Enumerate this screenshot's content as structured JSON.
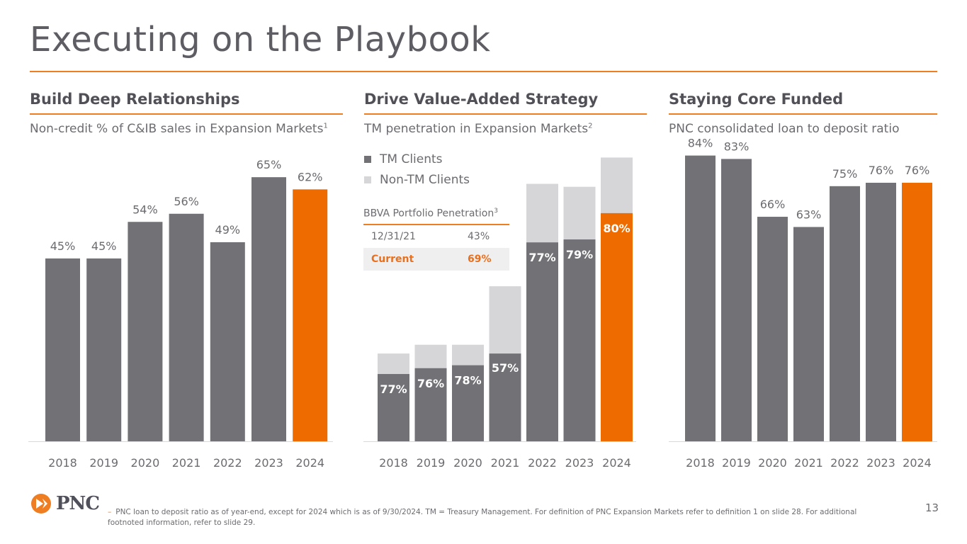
{
  "page": {
    "title": "Executing on the Playbook",
    "page_number": "13"
  },
  "panels": [
    {
      "heading": "Build Deep Relationships",
      "subtitle": "Non-credit % of C&IB sales in Expansion Markets",
      "sup": "1"
    },
    {
      "heading": "Drive Value-Added Strategy",
      "subtitle": "TM penetration in Expansion Markets",
      "sup": "2"
    },
    {
      "heading": "Staying Core Funded",
      "subtitle": "PNC consolidated loan to deposit ratio",
      "sup": ""
    }
  ],
  "legend": {
    "tm": "TM Clients",
    "non_tm": "Non-TM Clients"
  },
  "bbva": {
    "title": "BBVA Portfolio Penetration",
    "sup": "3",
    "rows": [
      {
        "label": "12/31/21",
        "value": "43%"
      },
      {
        "label": "Current",
        "value": "69%"
      }
    ]
  },
  "footer": {
    "logo": "PNC",
    "dash": "–",
    "footnote": "PNC loan to deposit ratio as of year-end, except for 2024 which is as of 9/30/2024. TM = Treasury Management. For definition of PNC Expansion Markets refer to definition 1 on slide 28. For additional footnoted information, refer to slide 29."
  },
  "colors": {
    "gray": "#717176",
    "light_gray": "#d6d6d8",
    "orange": "#ee6b00",
    "accent": "#ef7d22",
    "text": "#6b6b70"
  },
  "chart_data": [
    {
      "type": "bar",
      "title": "Non-credit % of C&IB sales in Expansion Markets",
      "categories": [
        "2018",
        "2019",
        "2020",
        "2021",
        "2022",
        "2023",
        "2024"
      ],
      "values": [
        45,
        45,
        54,
        56,
        49,
        65,
        62
      ],
      "labels": [
        "45%",
        "45%",
        "54%",
        "56%",
        "49%",
        "65%",
        "62%"
      ],
      "highlight_last": true,
      "ylim": [
        0,
        72
      ]
    },
    {
      "type": "bar",
      "stacked": true,
      "title": "TM penetration in Expansion Markets",
      "categories": [
        "2018",
        "2019",
        "2020",
        "2021",
        "2022",
        "2023",
        "2024"
      ],
      "series": [
        {
          "name": "TM Clients",
          "values": [
            23,
            25,
            26,
            30,
            68,
            69,
            78
          ]
        },
        {
          "name": "Non-TM Clients",
          "values": [
            7,
            8,
            7,
            23,
            20,
            18,
            19
          ]
        }
      ],
      "labels": [
        "77%",
        "76%",
        "78%",
        "57%",
        "77%",
        "79%",
        "80%"
      ],
      "highlight_last": true,
      "ylim": [
        0,
        100
      ]
    },
    {
      "type": "bar",
      "title": "PNC consolidated loan to deposit ratio",
      "categories": [
        "2018",
        "2019",
        "2020",
        "2021",
        "2022",
        "2023",
        "2024"
      ],
      "values": [
        84,
        83,
        66,
        63,
        75,
        76,
        76
      ],
      "labels": [
        "84%",
        "83%",
        "66%",
        "63%",
        "75%",
        "76%",
        "76%"
      ],
      "highlight_last": true,
      "ylim": [
        0,
        86
      ]
    }
  ]
}
